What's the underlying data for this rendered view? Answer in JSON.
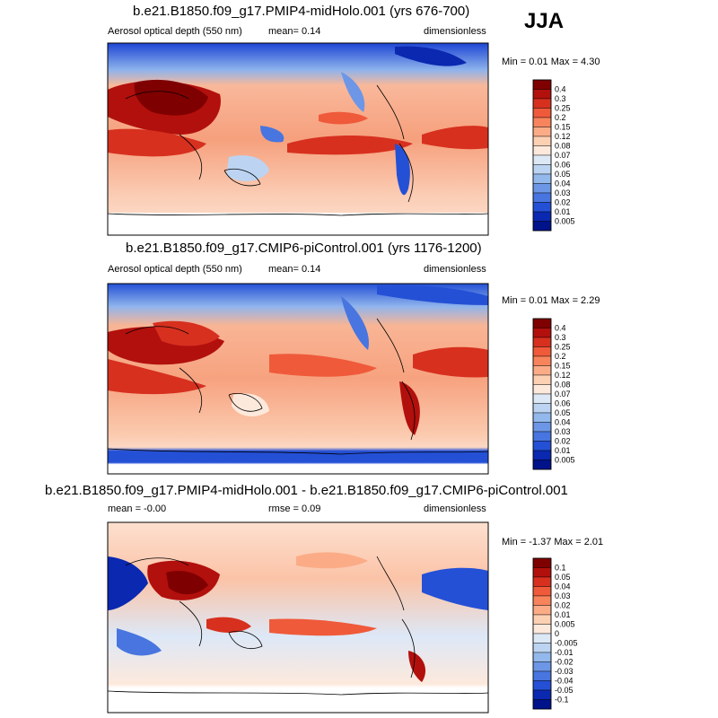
{
  "season": "JJA",
  "panels": [
    {
      "title": "b.e21.B1850.f09_g17.PMIP4-midHolo.001 (yrs 676-700)",
      "left_label": "Aerosol optical depth (550 nm)",
      "center_label": "mean=   0.14",
      "right_label": "dimensionless",
      "minmax": "Min =   0.01 Max =   4.30",
      "colorbar": {
        "levels": [
          "0.4",
          "0.3",
          "0.25",
          "0.2",
          "0.15",
          "0.12",
          "0.08",
          "0.07",
          "0.06",
          "0.05",
          "0.04",
          "0.03",
          "0.02",
          "0.01",
          "0.005"
        ],
        "colors": [
          "#7f0000",
          "#b2100d",
          "#d7301f",
          "#ef5a3a",
          "#f7845c",
          "#fbac87",
          "#fcd0b3",
          "#fde9dc",
          "#dde8f7",
          "#bcd4f2",
          "#93b8ec",
          "#6d97e6",
          "#4875df",
          "#2450d6",
          "#0a28b0",
          "#00138a"
        ]
      }
    },
    {
      "title": "b.e21.B1850.f09_g17.CMIP6-piControl.001 (yrs 1176-1200)",
      "left_label": "Aerosol optical depth (550 nm)",
      "center_label": "mean=   0.14",
      "right_label": "dimensionless",
      "minmax": "Min =   0.01 Max =   2.29",
      "colorbar": {
        "levels": [
          "0.4",
          "0.3",
          "0.25",
          "0.2",
          "0.15",
          "0.12",
          "0.08",
          "0.07",
          "0.06",
          "0.05",
          "0.04",
          "0.03",
          "0.02",
          "0.01",
          "0.005"
        ],
        "colors": [
          "#7f0000",
          "#b2100d",
          "#d7301f",
          "#ef5a3a",
          "#f7845c",
          "#fbac87",
          "#fcd0b3",
          "#fde9dc",
          "#dde8f7",
          "#bcd4f2",
          "#93b8ec",
          "#6d97e6",
          "#4875df",
          "#2450d6",
          "#0a28b0",
          "#00138a"
        ]
      }
    },
    {
      "title": "b.e21.B1850.f09_g17.PMIP4-midHolo.001 - b.e21.B1850.f09_g17.CMIP6-piControl.001",
      "left_label": "mean =  -0.00",
      "center_label": "rmse =   0.09",
      "right_label": "dimensionless",
      "minmax": "Min =  -1.37 Max =   2.01",
      "colorbar": {
        "levels": [
          "0.1",
          "0.05",
          "0.04",
          "0.03",
          "0.02",
          "0.01",
          "0.005",
          "0",
          "-0.005",
          "-0.01",
          "-0.02",
          "-0.03",
          "-0.04",
          "-0.05",
          "-0.1"
        ],
        "colors": [
          "#7f0000",
          "#b2100d",
          "#d7301f",
          "#ef5a3a",
          "#f7845c",
          "#fbac87",
          "#fcd0b3",
          "#fde9dc",
          "#dde8f7",
          "#bcd4f2",
          "#93b8ec",
          "#6d97e6",
          "#4875df",
          "#2450d6",
          "#0a28b0",
          "#00138a"
        ]
      }
    }
  ],
  "chart_data": {
    "type": "heatmap",
    "season": "JJA",
    "variable": "Aerosol optical depth (550 nm)",
    "units": "dimensionless",
    "maps": [
      {
        "case": "b.e21.B1850.f09_g17.PMIP4-midHolo.001",
        "years": "676-700",
        "mean": 0.14,
        "min": 0.01,
        "max": 4.3
      },
      {
        "case": "b.e21.B1850.f09_g17.CMIP6-piControl.001",
        "years": "1176-1200",
        "mean": 0.14,
        "min": 0.01,
        "max": 2.29
      },
      {
        "case": "difference",
        "mean": -0.0,
        "rmse": 0.09,
        "min": -1.37,
        "max": 2.01
      }
    ]
  }
}
